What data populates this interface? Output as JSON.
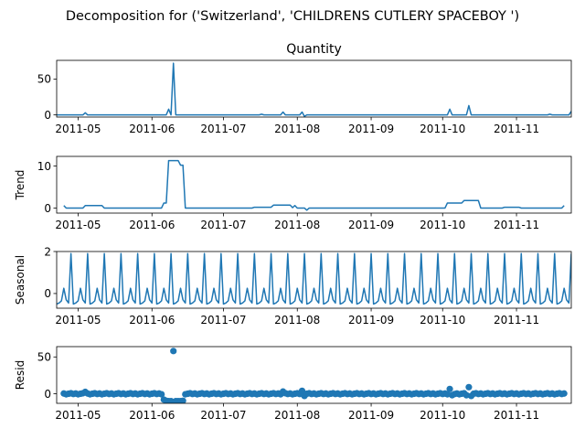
{
  "chart_data": [
    {
      "type": "line",
      "suptitle": "Decomposition for ('Switzerland', 'CHILDRENS CUTLERY SPACEBOY ')",
      "title": "Quantity",
      "ylabel": "",
      "x_range": [
        "2011-04-22",
        "2011-11-24"
      ],
      "x_ticks": [
        "2011-05",
        "2011-06",
        "2011-07",
        "2011-08",
        "2011-09",
        "2011-10",
        "2011-11"
      ],
      "ylim": [
        -3,
        76
      ],
      "y_ticks": [
        0,
        50
      ],
      "series": [
        {
          "name": "Quantity",
          "color": "#1f77b4",
          "points": [
            [
              "2011-04-22",
              0
            ],
            [
              "2011-05-03",
              0
            ],
            [
              "2011-05-04",
              3
            ],
            [
              "2011-05-05",
              0
            ],
            [
              "2011-06-07",
              0
            ],
            [
              "2011-06-08",
              8
            ],
            [
              "2011-06-09",
              0
            ],
            [
              "2011-06-10",
              72
            ],
            [
              "2011-06-11",
              0
            ],
            [
              "2011-07-16",
              0
            ],
            [
              "2011-07-17",
              1
            ],
            [
              "2011-07-18",
              0
            ],
            [
              "2011-07-25",
              0
            ],
            [
              "2011-07-26",
              4
            ],
            [
              "2011-07-27",
              0
            ],
            [
              "2011-08-02",
              0
            ],
            [
              "2011-08-03",
              4
            ],
            [
              "2011-08-04",
              -2
            ],
            [
              "2011-08-05",
              0
            ],
            [
              "2011-10-03",
              0
            ],
            [
              "2011-10-04",
              8
            ],
            [
              "2011-10-05",
              0
            ],
            [
              "2011-10-11",
              0
            ],
            [
              "2011-10-12",
              13
            ],
            [
              "2011-10-13",
              0
            ],
            [
              "2011-11-14",
              0
            ],
            [
              "2011-11-15",
              1
            ],
            [
              "2011-11-16",
              0
            ],
            [
              "2011-11-23",
              0
            ],
            [
              "2011-11-24",
              5
            ]
          ]
        }
      ]
    },
    {
      "type": "line",
      "title": "",
      "ylabel": "Trend",
      "x_range": [
        "2011-04-22",
        "2011-11-24"
      ],
      "x_ticks": [
        "2011-05",
        "2011-06",
        "2011-07",
        "2011-08",
        "2011-09",
        "2011-10",
        "2011-11"
      ],
      "ylim": [
        -1.2,
        12.3
      ],
      "y_ticks": [
        0,
        10
      ],
      "series": [
        {
          "name": "Trend",
          "color": "#1f77b4",
          "points": [
            [
              "2011-04-25",
              0.6
            ],
            [
              "2011-04-26",
              0
            ],
            [
              "2011-05-03",
              0
            ],
            [
              "2011-05-04",
              0.6
            ],
            [
              "2011-05-11",
              0.6
            ],
            [
              "2011-05-12",
              0
            ],
            [
              "2011-06-05",
              0
            ],
            [
              "2011-06-06",
              1.2
            ],
            [
              "2011-06-07",
              1.2
            ],
            [
              "2011-06-08",
              11.3
            ],
            [
              "2011-06-12",
              11.3
            ],
            [
              "2011-06-13",
              10.2
            ],
            [
              "2011-06-14",
              10.2
            ],
            [
              "2011-06-15",
              0
            ],
            [
              "2011-07-13",
              0
            ],
            [
              "2011-07-14",
              0.2
            ],
            [
              "2011-07-21",
              0.2
            ],
            [
              "2011-07-22",
              0.7
            ],
            [
              "2011-07-29",
              0.7
            ],
            [
              "2011-07-30",
              0.1
            ],
            [
              "2011-07-31",
              0.6
            ],
            [
              "2011-08-01",
              0
            ],
            [
              "2011-08-04",
              0
            ],
            [
              "2011-08-05",
              -0.5
            ],
            [
              "2011-08-06",
              0
            ],
            [
              "2011-10-02",
              0
            ],
            [
              "2011-10-03",
              1.2
            ],
            [
              "2011-10-09",
              1.2
            ],
            [
              "2011-10-10",
              1.8
            ],
            [
              "2011-10-16",
              1.8
            ],
            [
              "2011-10-17",
              0
            ],
            [
              "2011-10-26",
              0
            ],
            [
              "2011-10-27",
              0.2
            ],
            [
              "2011-11-02",
              0.2
            ],
            [
              "2011-11-03",
              0
            ],
            [
              "2011-11-20",
              0
            ],
            [
              "2011-11-21",
              0.6
            ]
          ]
        }
      ]
    },
    {
      "type": "line",
      "title": "",
      "ylabel": "Seasonal",
      "x_range": [
        "2011-04-22",
        "2011-11-24"
      ],
      "x_ticks": [
        "2011-05",
        "2011-06",
        "2011-07",
        "2011-08",
        "2011-09",
        "2011-10",
        "2011-11"
      ],
      "ylim": [
        -0.7,
        2.0
      ],
      "y_ticks": [
        0,
        2
      ],
      "period_days": 7,
      "weekly_pattern": [
        1.9,
        -0.5,
        -0.45,
        -0.35,
        0.25,
        -0.3,
        -0.45
      ],
      "series": [
        {
          "name": "Seasonal",
          "color": "#1f77b4"
        }
      ]
    },
    {
      "type": "scatter",
      "title": "",
      "ylabel": "Resid",
      "x_range": [
        "2011-04-22",
        "2011-11-24"
      ],
      "x_ticks": [
        "2011-05",
        "2011-06",
        "2011-07",
        "2011-08",
        "2011-09",
        "2011-10",
        "2011-11"
      ],
      "ylim": [
        -13,
        64
      ],
      "y_ticks": [
        0,
        50
      ],
      "outliers": [
        [
          "2011-05-04",
          2.5
        ],
        [
          "2011-06-06",
          -8
        ],
        [
          "2011-06-07",
          -9.5
        ],
        [
          "2011-06-08",
          -10
        ],
        [
          "2011-06-09",
          -10
        ],
        [
          "2011-06-10",
          58
        ],
        [
          "2011-06-11",
          -10
        ],
        [
          "2011-06-12",
          -10
        ],
        [
          "2011-06-13",
          -10
        ],
        [
          "2011-06-14",
          -9.5
        ],
        [
          "2011-07-26",
          3
        ],
        [
          "2011-08-03",
          4
        ],
        [
          "2011-08-04",
          -3
        ],
        [
          "2011-10-04",
          6.5
        ],
        [
          "2011-10-05",
          -2
        ],
        [
          "2011-10-11",
          -2
        ],
        [
          "2011-10-12",
          9
        ],
        [
          "2011-10-13",
          -3
        ]
      ],
      "series": [
        {
          "name": "Resid",
          "color": "#1f77b4"
        }
      ]
    }
  ]
}
